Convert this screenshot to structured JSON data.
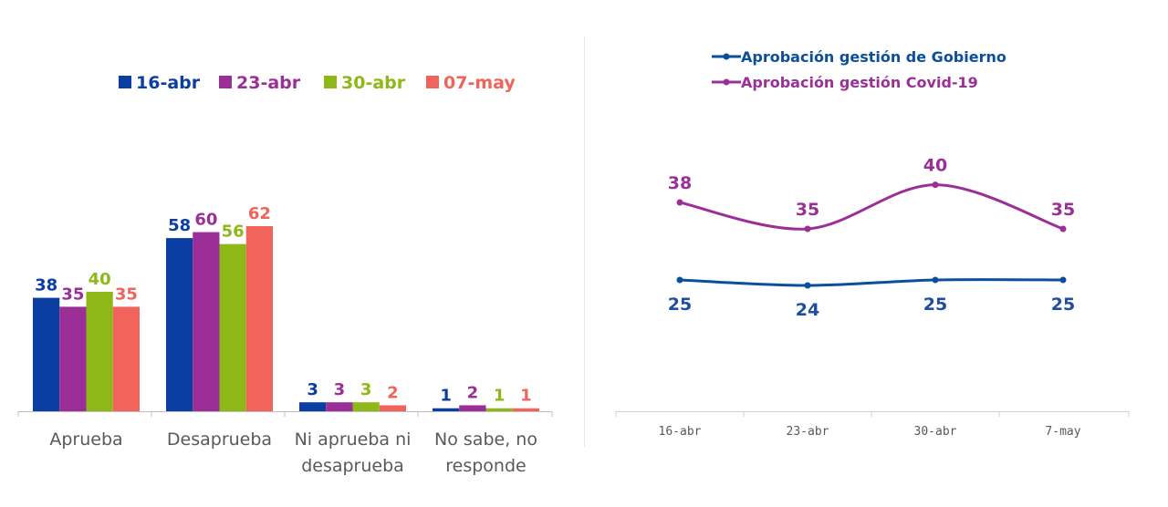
{
  "chart_data": [
    {
      "type": "bar",
      "legend_position": "top",
      "categories": [
        "Aprueba",
        "Desaprueba",
        "Ni aprueba ni desaprueba",
        "No sabe, no responde"
      ],
      "category_lines": [
        [
          "Aprueba"
        ],
        [
          "Desaprueba"
        ],
        [
          "Ni aprueba ni",
          "desaprueba"
        ],
        [
          "No sabe, no",
          "responde"
        ]
      ],
      "series": [
        {
          "name": "16-abr",
          "color": "#0a3ea3",
          "values": [
            38,
            58,
            3,
            1
          ]
        },
        {
          "name": "23-abr",
          "color": "#9b2f97",
          "values": [
            35,
            60,
            3,
            2
          ]
        },
        {
          "name": "30-abr",
          "color": "#8db817",
          "values": [
            40,
            56,
            3,
            1
          ]
        },
        {
          "name": "07-may",
          "color": "#f0645c",
          "values": [
            35,
            62,
            2,
            1
          ]
        }
      ],
      "ylim": [
        0,
        62
      ],
      "grid": false
    },
    {
      "type": "line",
      "legend_position": "top-left",
      "x": [
        "16-abr",
        "23-abr",
        "30-abr",
        "7-may"
      ],
      "series": [
        {
          "name": "Aprobación gestión de Gobierno",
          "color": "#0b4f9c",
          "values": [
            25,
            24,
            25,
            25
          ],
          "label_color": "#1f4ea0"
        },
        {
          "name": "Aprobación gestión Covid-19",
          "color": "#9b2f97",
          "values": [
            38,
            35,
            40,
            35
          ],
          "label_color": "#9b2f97"
        }
      ],
      "grid": false
    }
  ]
}
